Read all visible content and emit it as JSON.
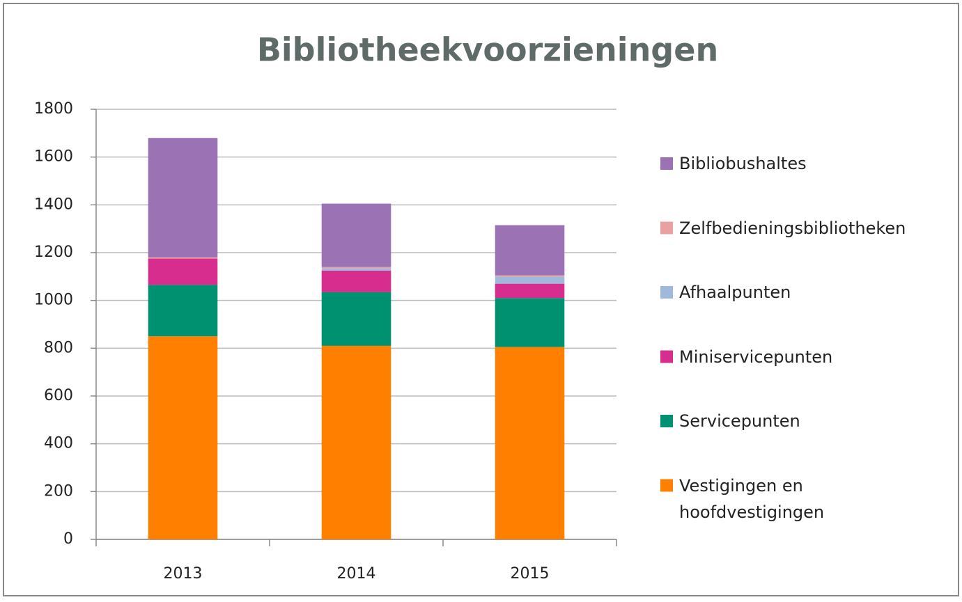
{
  "chart_data": {
    "type": "stacked_bar",
    "title": "Bibliotheekvoorzieningen",
    "categories": [
      "2013",
      "2014",
      "2015"
    ],
    "series": [
      {
        "name": "Vestigingen en hoofdvestigingen",
        "color": "#ff7f00",
        "values": [
          850,
          810,
          805
        ]
      },
      {
        "name": "Servicepunten",
        "color": "#009270",
        "values": [
          215,
          225,
          205
        ]
      },
      {
        "name": "Miniservicepunten",
        "color": "#d62d8e",
        "values": [
          110,
          90,
          60
        ]
      },
      {
        "name": "Afhaalpunten",
        "color": "#a0b8dc",
        "values": [
          0,
          10,
          30
        ]
      },
      {
        "name": "Zelfbedieningsbibliotheken",
        "color": "#e8a0a0",
        "values": [
          5,
          5,
          5
        ]
      },
      {
        "name": "Bibliobushaltes",
        "color": "#9b72b4",
        "values": [
          500,
          265,
          210
        ]
      }
    ],
    "ylim": [
      0,
      1800
    ],
    "yticks": [
      0,
      200,
      400,
      600,
      800,
      1000,
      1200,
      1400,
      1600,
      1800
    ],
    "grid": true,
    "legend": "right"
  }
}
